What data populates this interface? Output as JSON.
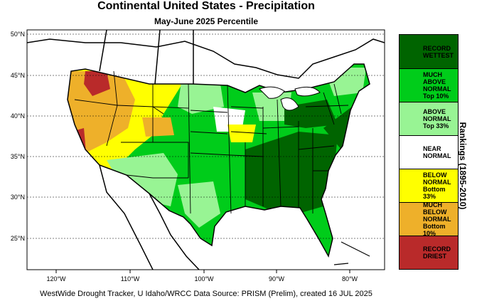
{
  "title": "Continental United States - Precipitation",
  "subtitle": "May-June 2025 Percentile",
  "footer": "WestWide Drought Tracker, U Idaho/WRCC Data Source: PRISM (Prelim), created 16 JUL 2025",
  "legend": {
    "title": "Rankings (1895-2010)",
    "items": [
      {
        "label": "RECORD WETTEST",
        "color": "#006400"
      },
      {
        "label": "MUCH ABOVE NORMAL Top 10%",
        "color": "#00cc1a"
      },
      {
        "label": "ABOVE NORMAL Top 33%",
        "color": "#98f494"
      },
      {
        "label": "NEAR NORMAL",
        "color": "#ffffff"
      },
      {
        "label": "BELOW NORMAL Bottom 33%",
        "color": "#ffff00"
      },
      {
        "label": "MUCH BELOW NORMAL Bottom 10%",
        "color": "#eeb02a"
      },
      {
        "label": "RECORD DRIEST",
        "color": "#b92a2a"
      }
    ]
  },
  "lat_ticks": [
    "50°N",
    "45°N",
    "40°N",
    "35°N",
    "30°N",
    "25°N"
  ],
  "lon_ticks": [
    "120°W",
    "110°W",
    "100°W",
    "90°W",
    "80°W"
  ]
}
